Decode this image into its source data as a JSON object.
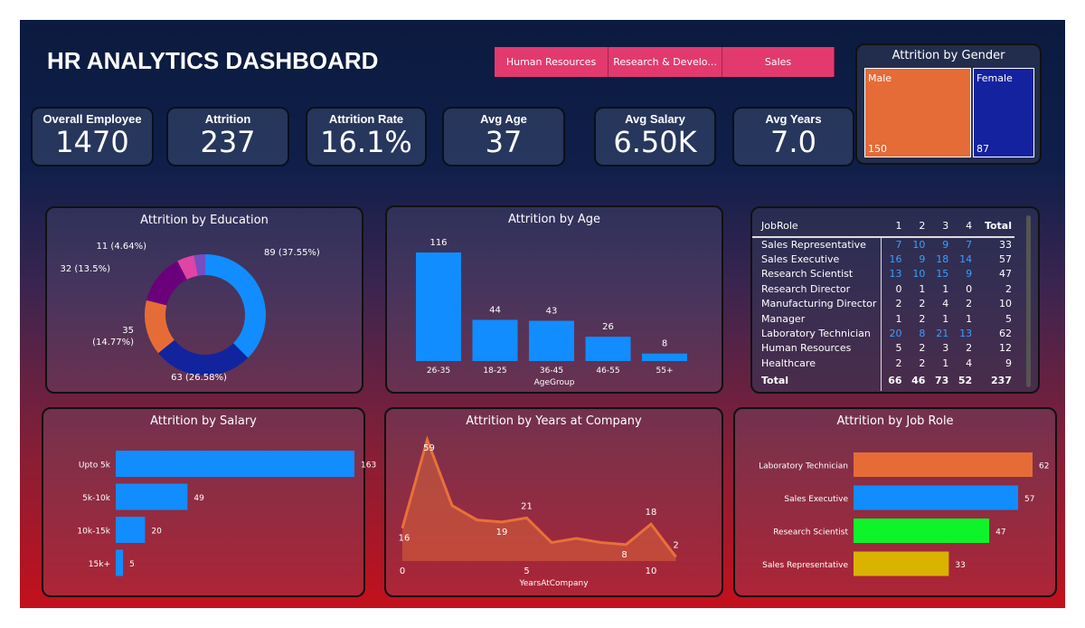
{
  "title": "HR ANALYTICS DASHBOARD",
  "slicer": [
    "Human Resources",
    "Research & Develo...",
    "Sales"
  ],
  "kpis": [
    {
      "label": "Overall Employee",
      "value": "1470"
    },
    {
      "label": "Attrition",
      "value": "237"
    },
    {
      "label": "Attrition Rate",
      "value": "16.1%"
    },
    {
      "label": "Avg Age",
      "value": "37"
    },
    {
      "label": "Avg Salary",
      "value": "6.50K"
    },
    {
      "label": "Avg Years",
      "value": "7.0"
    }
  ],
  "gender": {
    "title": "Attrition by Gender",
    "items": [
      {
        "label": "Male",
        "value": "150",
        "color": "#e56b37"
      },
      {
        "label": "Female",
        "value": "87",
        "color": "#1522a0"
      }
    ]
  },
  "table": {
    "headers": [
      "JobRole",
      "1",
      "2",
      "3",
      "4",
      "Total"
    ],
    "rows": [
      [
        "Sales Representative",
        "7",
        "10",
        "9",
        "7",
        "33"
      ],
      [
        "Sales Executive",
        "16",
        "9",
        "18",
        "14",
        "57"
      ],
      [
        "Research Scientist",
        "13",
        "10",
        "15",
        "9",
        "47"
      ],
      [
        "Research Director",
        "0",
        "1",
        "1",
        "0",
        "2"
      ],
      [
        "Manufacturing Director",
        "2",
        "2",
        "4",
        "2",
        "10"
      ],
      [
        "Manager",
        "1",
        "2",
        "1",
        "1",
        "5"
      ],
      [
        "Laboratory Technician",
        "20",
        "8",
        "21",
        "13",
        "62"
      ],
      [
        "Human Resources",
        "5",
        "2",
        "3",
        "2",
        "12"
      ],
      [
        "Healthcare",
        "2",
        "2",
        "1",
        "4",
        "9"
      ]
    ],
    "total": [
      "Total",
      "66",
      "46",
      "73",
      "52",
      "237"
    ]
  },
  "chart_data": [
    {
      "type": "pie",
      "title": "Attrition by Education",
      "values": [
        89,
        63,
        35,
        32,
        11,
        7
      ],
      "labels": [
        "89 (37.55%)",
        "63 (26.58%)",
        "35 (14.77%)",
        "32 (13.5%)",
        "11 (4.64%)",
        ""
      ],
      "colors": [
        "#118dff",
        "#12239e",
        "#e66c37",
        "#6b007b",
        "#e044a7",
        "#744ec2"
      ]
    },
    {
      "type": "bar",
      "title": "Attrition by Age",
      "categories": [
        "26-35",
        "18-25",
        "36-45",
        "46-55",
        "55+"
      ],
      "values": [
        116,
        44,
        43,
        26,
        8
      ],
      "xlabel": "AgeGroup",
      "color": "#118dff"
    },
    {
      "type": "bar",
      "orientation": "horizontal",
      "title": "Attrition by Salary",
      "categories": [
        "Upto 5k",
        "5k-10k",
        "10k-15k",
        "15k+"
      ],
      "values": [
        163,
        49,
        20,
        5
      ],
      "color": "#118dff"
    },
    {
      "type": "area",
      "title": "Attrition by Years at Company",
      "x": [
        0,
        1,
        2,
        3,
        4,
        5,
        6,
        7,
        8,
        9,
        10,
        11
      ],
      "values": [
        16,
        59,
        27,
        20,
        19,
        21,
        9,
        11,
        9,
        8,
        18,
        2
      ],
      "labeled": [
        0,
        1,
        4,
        5,
        9,
        10,
        11
      ],
      "xticks": [
        0,
        5,
        10
      ],
      "xlabel": "YearsAtCompany",
      "color": "#e8703a"
    },
    {
      "type": "bar",
      "orientation": "horizontal",
      "title": "Attrition by Job Role",
      "categories": [
        "Laboratory Technician",
        "Sales Executive",
        "Research Scientist",
        "Sales Representative"
      ],
      "values": [
        62,
        57,
        47,
        33
      ],
      "colors": [
        "#e66c37",
        "#118dff",
        "#0df52a",
        "#d9b300"
      ]
    }
  ]
}
